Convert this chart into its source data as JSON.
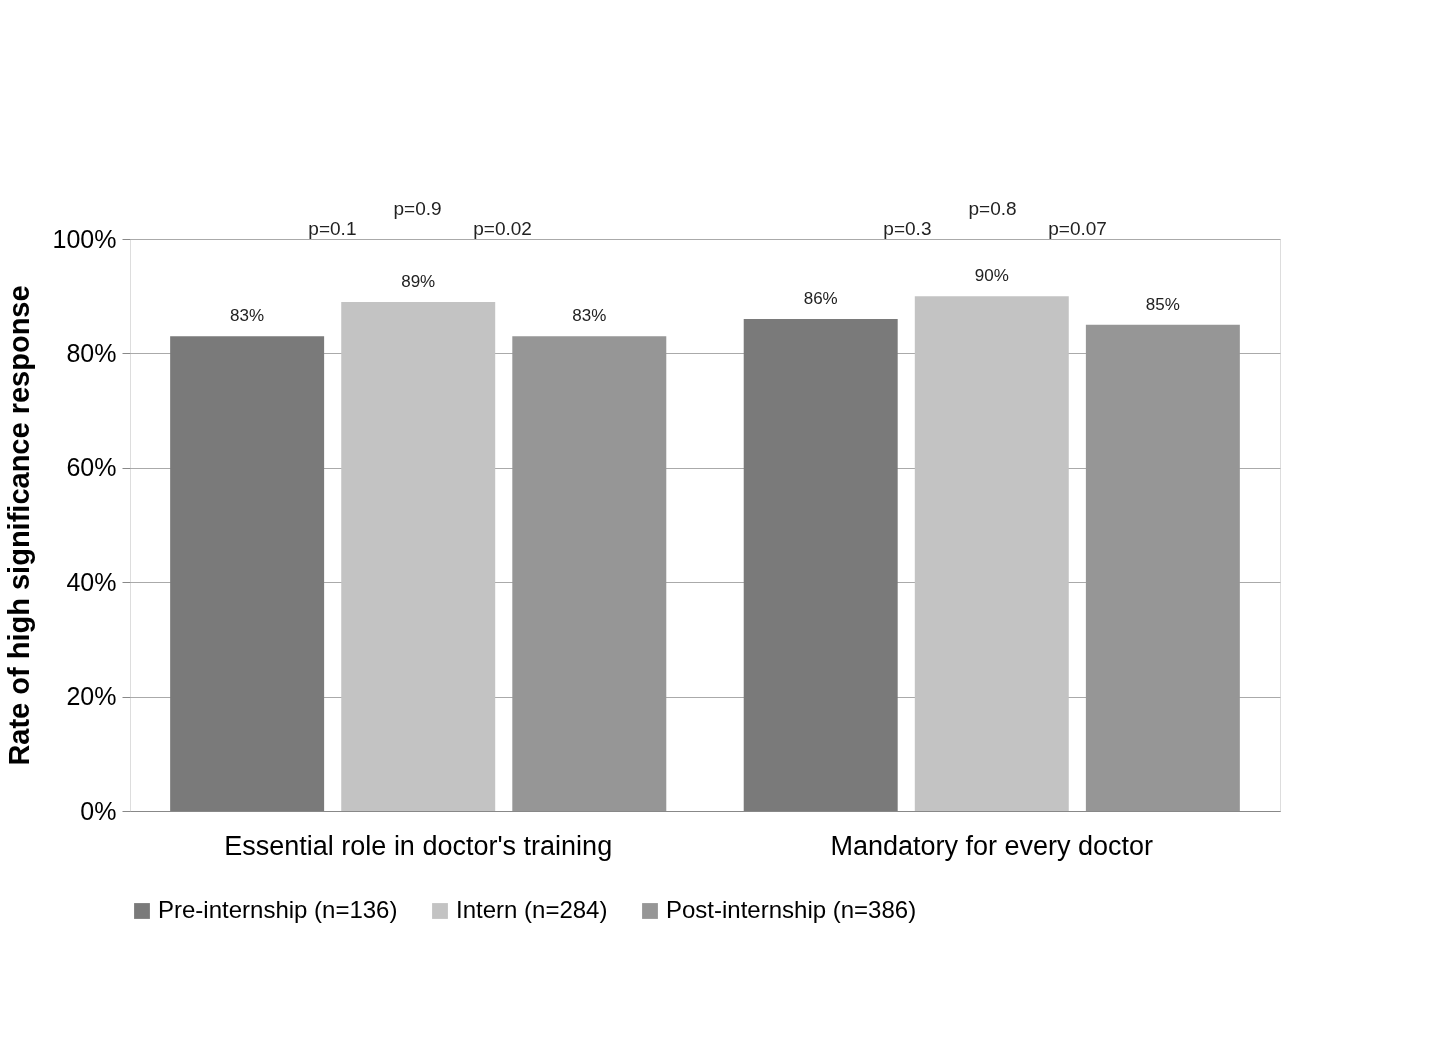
{
  "chart_data": {
    "type": "bar",
    "ylabel": "Rate of high significance response",
    "categories": [
      "Essential role in doctor's training",
      "Mandatory for every doctor"
    ],
    "series": [
      {
        "name": "Pre-internship (n=136)",
        "color": "#7a7a7a",
        "values": [
          83,
          86
        ],
        "value_labels": [
          "83%",
          "86%"
        ]
      },
      {
        "name": "Intern (n=284)",
        "color": "#c3c3c3",
        "values": [
          89,
          90
        ],
        "value_labels": [
          "89%",
          "90%"
        ]
      },
      {
        "name": "Post-internship (n=386)",
        "color": "#969696",
        "values": [
          83,
          85
        ],
        "value_labels": [
          "83%",
          "85%"
        ]
      }
    ],
    "ylim": [
      0,
      100
    ],
    "yticks": [
      {
        "value": 0,
        "label": "0%"
      },
      {
        "value": 20,
        "label": "20%"
      },
      {
        "value": 40,
        "label": "40%"
      },
      {
        "value": 60,
        "label": "60%"
      },
      {
        "value": 80,
        "label": "80%"
      },
      {
        "value": 100,
        "label": "100%"
      }
    ],
    "annotations": [
      "p=0.9",
      "p=0.1",
      "p=0.02",
      "p=0.8",
      "p=0.3",
      "p=0.07"
    ],
    "grid": "y",
    "legend": "bottom"
  }
}
